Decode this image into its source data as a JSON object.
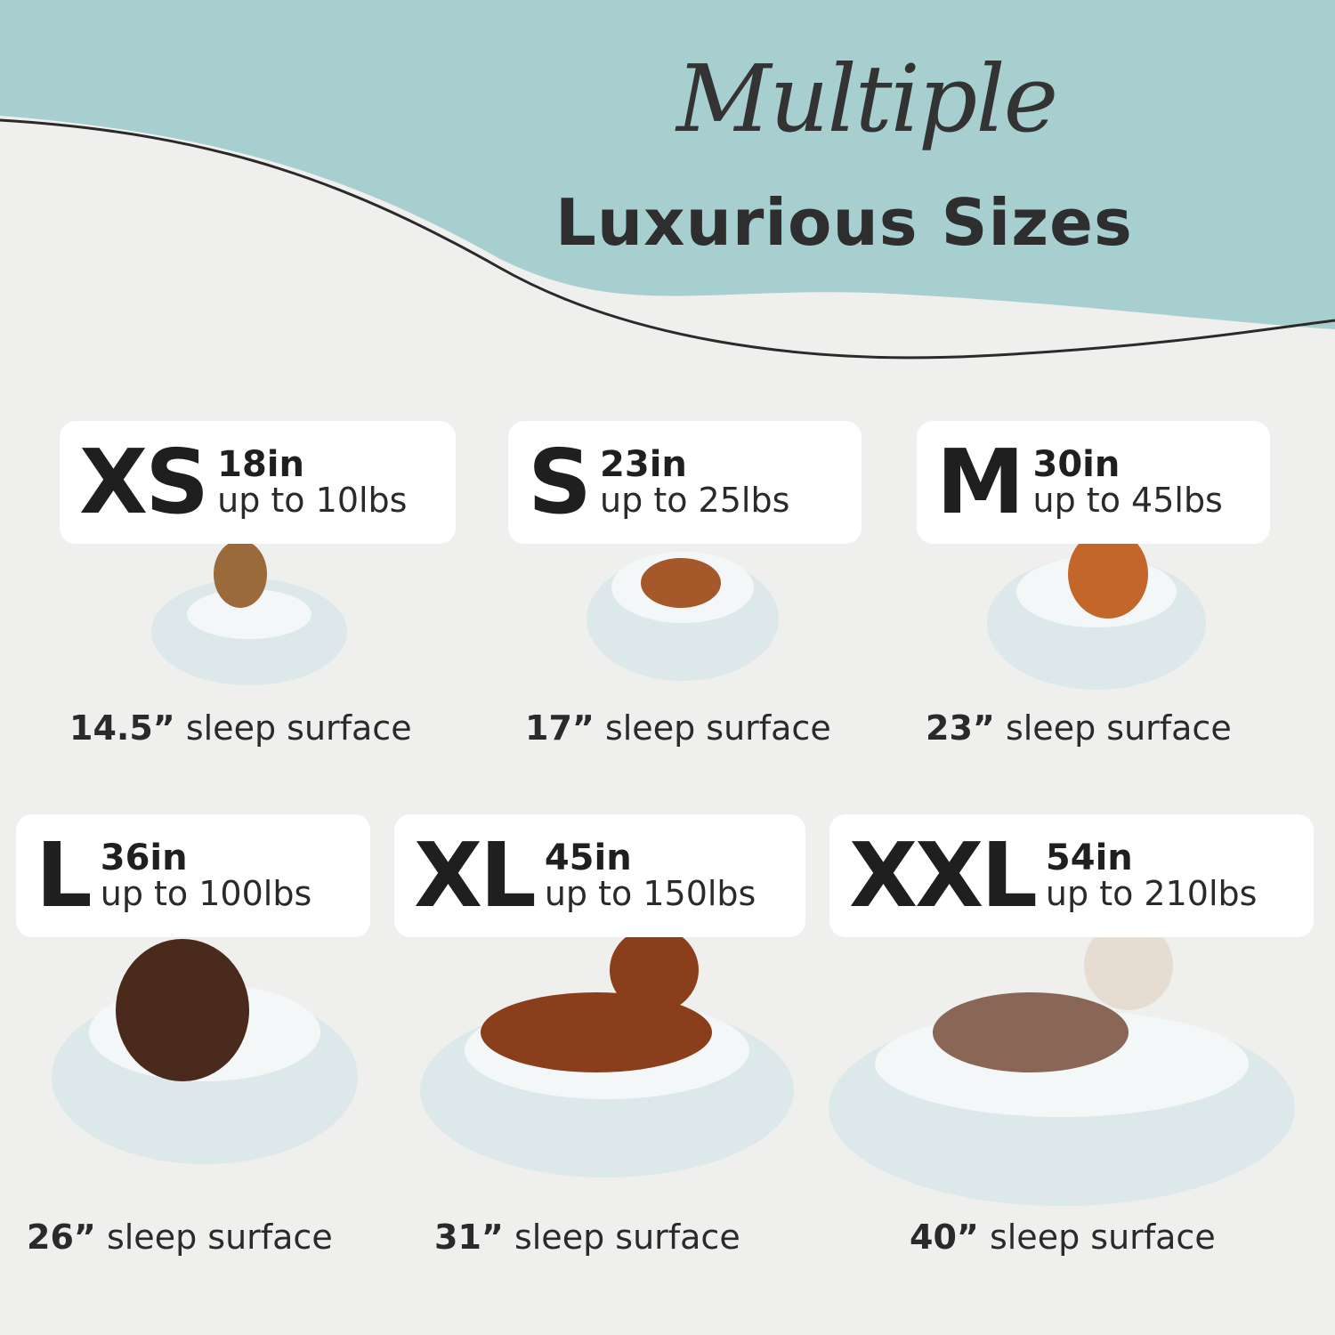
{
  "header": {
    "title_script": "Multiple",
    "title_main": "Luxurious Sizes"
  },
  "colors": {
    "teal": "#a8cfcf",
    "background": "#efefee",
    "text": "#262626",
    "bed": "#dde8ea"
  },
  "sizes": [
    {
      "label": "XS",
      "inches": "18in",
      "weight": "up to 10lbs",
      "surface_value": "14.5”",
      "surface_text": "sleep surface",
      "dog_color": "#9a6a3a"
    },
    {
      "label": "S",
      "inches": "23in",
      "weight": "up to 25lbs",
      "surface_value": "17”",
      "surface_text": "sleep surface",
      "dog_color": "#a5582a"
    },
    {
      "label": "M",
      "inches": "30in",
      "weight": "up to 45lbs",
      "surface_value": "23”",
      "surface_text": "sleep surface",
      "dog_color": "#c2662a"
    },
    {
      "label": "L",
      "inches": "36in",
      "weight": "up to 100lbs",
      "surface_value": "26”",
      "surface_text": "sleep surface",
      "dog_color": "#4a2a1c"
    },
    {
      "label": "XL",
      "inches": "45in",
      "weight": "up to 150lbs",
      "surface_value": "31”",
      "surface_text": "sleep surface",
      "dog_color": "#8a3e1c"
    },
    {
      "label": "XXL",
      "inches": "54in",
      "weight": "up to 210lbs",
      "surface_value": "40”",
      "surface_text": "sleep surface",
      "dog_color": "#8a6656"
    }
  ]
}
